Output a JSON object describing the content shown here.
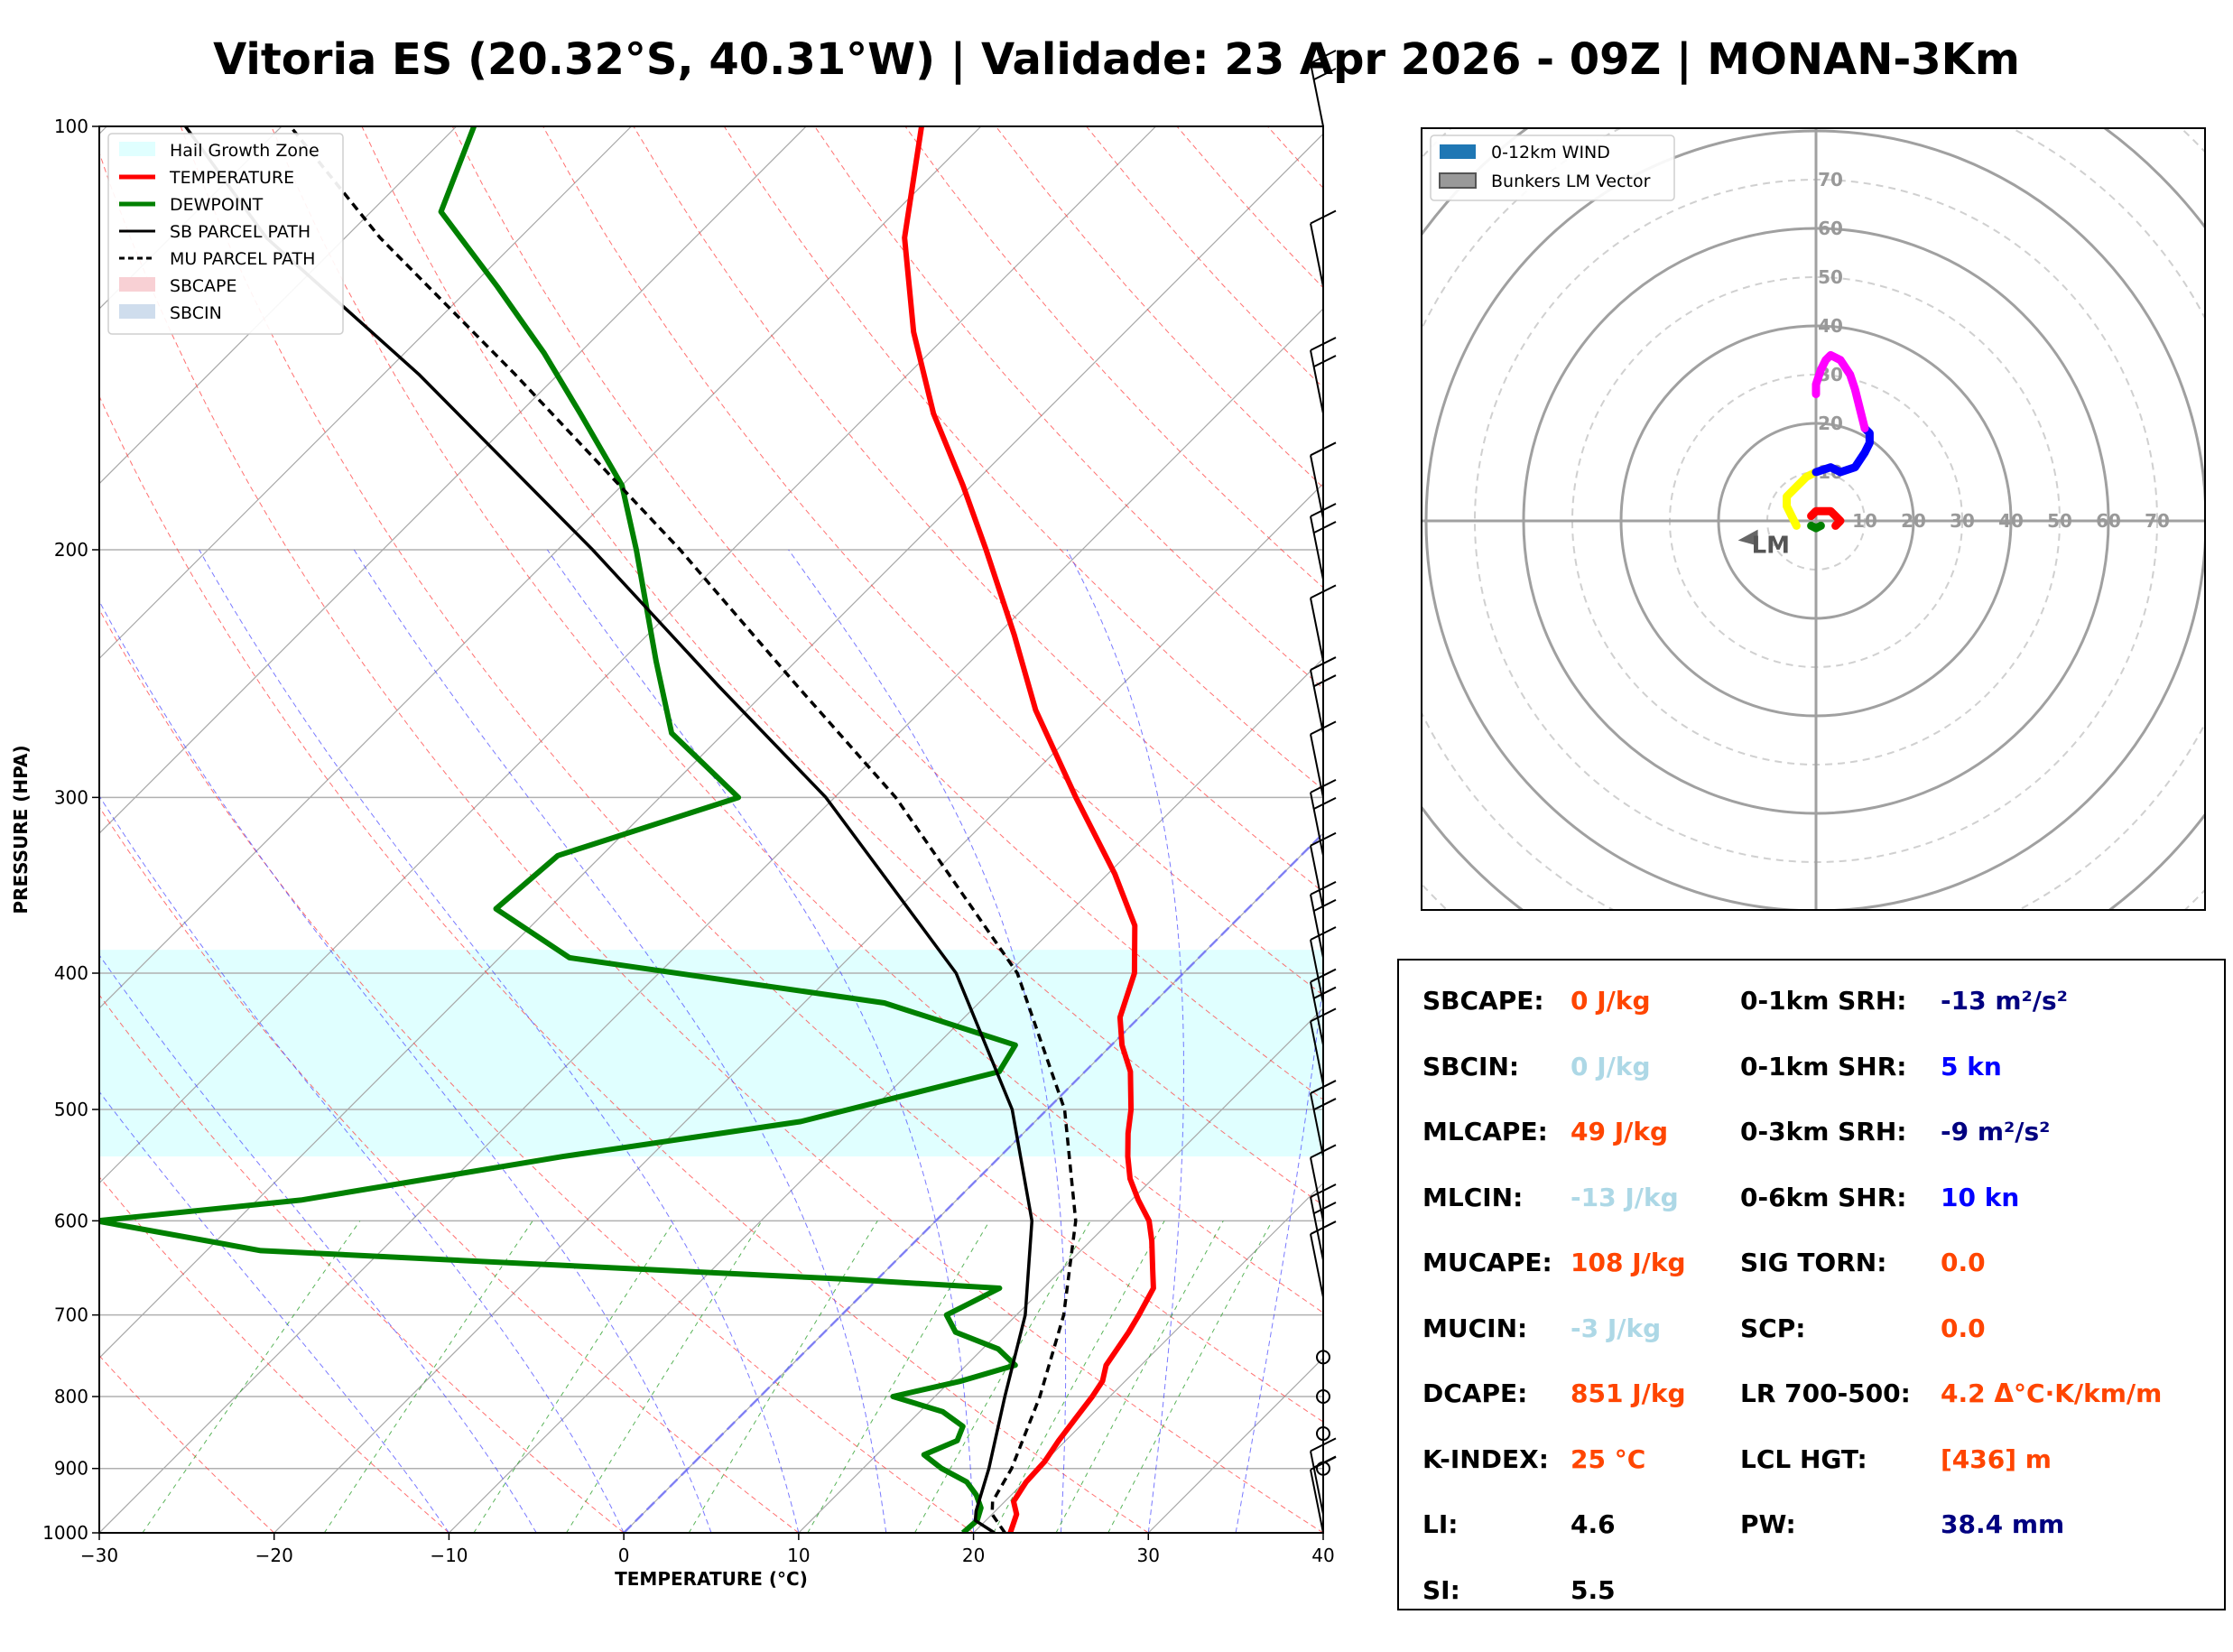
{
  "title": "Vitoria ES (20.32°S, 40.31°W) | Validade: 23 Apr 2026 - 09Z | MONAN-3Km",
  "chart_data": [
    {
      "type": "line",
      "subtype": "skew-T log-p diagram",
      "xlabel": "TEMPERATURE (°C)",
      "ylabel": "PRESSURE (HPA)",
      "xlim": [
        -30,
        40
      ],
      "ylim": [
        1000,
        100
      ],
      "y_scale": "log",
      "grid": true,
      "x_ticks": [
        "−30",
        "−20",
        "−10",
        "0",
        "10",
        "20",
        "30",
        "40"
      ],
      "y_ticks": [
        "100",
        "200",
        "300",
        "400",
        "500",
        "600",
        "700",
        "800",
        "900",
        "1000"
      ],
      "legend_position": "top-left",
      "legend": [
        {
          "label": "Hail Growth Zone",
          "color": "#e0ffff",
          "style": "patch"
        },
        {
          "label": "TEMPERATURE",
          "color": "#ff0000",
          "style": "solid"
        },
        {
          "label": "DEWPOINT",
          "color": "#008000",
          "style": "solid"
        },
        {
          "label": "SB PARCEL PATH",
          "color": "#000000",
          "style": "solid"
        },
        {
          "label": "MU PARCEL PATH",
          "color": "#000000",
          "style": "dashed"
        },
        {
          "label": "SBCAPE",
          "color": "#f8d0d4",
          "style": "patch"
        },
        {
          "label": "SBCIN",
          "color": "#cfdded",
          "style": "patch"
        }
      ],
      "hail_growth_zone_hpa": [
        540,
        385
      ],
      "series": [
        {
          "name": "TEMPERATURE",
          "color": "#ff0000",
          "points": [
            [
              1000,
              22.1
            ],
            [
              970,
              21.4
            ],
            [
              950,
              20.5
            ],
            [
              920,
              20.1
            ],
            [
              890,
              20.0
            ],
            [
              860,
              19.6
            ],
            [
              830,
              19.3
            ],
            [
              800,
              19.0
            ],
            [
              780,
              18.7
            ],
            [
              760,
              18.0
            ],
            [
              720,
              17.4
            ],
            [
              700,
              17.0
            ],
            [
              670,
              16.3
            ],
            [
              650,
              15.2
            ],
            [
              620,
              13.5
            ],
            [
              600,
              12.2
            ],
            [
              580,
              10.4
            ],
            [
              560,
              8.7
            ],
            [
              540,
              7.3
            ],
            [
              520,
              6.0
            ],
            [
              500,
              4.8
            ],
            [
              470,
              2.6
            ],
            [
              450,
              0.6
            ],
            [
              430,
              -1.1
            ],
            [
              400,
              -2.8
            ],
            [
              370,
              -5.5
            ],
            [
              340,
              -9.6
            ],
            [
              300,
              -16.2
            ],
            [
              260,
              -23.5
            ],
            [
              230,
              -29.0
            ],
            [
              200,
              -35.5
            ],
            [
              180,
              -40.5
            ],
            [
              160,
              -46.3
            ],
            [
              140,
              -52.1
            ],
            [
              120,
              -58.0
            ],
            [
              100,
              -63.4
            ]
          ]
        },
        {
          "name": "DEWPOINT",
          "color": "#008000",
          "points": [
            [
              1000,
              19.4
            ],
            [
              980,
              19.5
            ],
            [
              960,
              19.0
            ],
            [
              940,
              18.0
            ],
            [
              920,
              16.7
            ],
            [
              900,
              14.5
            ],
            [
              880,
              12.7
            ],
            [
              860,
              13.8
            ],
            [
              840,
              13.3
            ],
            [
              820,
              11.3
            ],
            [
              800,
              7.6
            ],
            [
              780,
              10.6
            ],
            [
              760,
              12.8
            ],
            [
              740,
              10.9
            ],
            [
              720,
              7.5
            ],
            [
              700,
              6.0
            ],
            [
              670,
              7.5
            ],
            [
              660,
              -2.0
            ],
            [
              630,
              -36.9
            ],
            [
              600,
              -48.0
            ],
            [
              580,
              -37.5
            ],
            [
              540,
              -25.0
            ],
            [
              510,
              -13.4
            ],
            [
              470,
              -4.9
            ],
            [
              450,
              -5.5
            ],
            [
              420,
              -15.4
            ],
            [
              390,
              -36.0
            ],
            [
              360,
              -43.0
            ],
            [
              330,
              -42.5
            ],
            [
              300,
              -35.5
            ],
            [
              270,
              -43.0
            ],
            [
              240,
              -48.0
            ],
            [
              200,
              -55.5
            ],
            [
              180,
              -60.0
            ],
            [
              160,
              -66.5
            ],
            [
              145,
              -72.0
            ],
            [
              130,
              -78.5
            ],
            [
              115,
              -86.0
            ],
            [
              100,
              -89.0
            ]
          ]
        },
        {
          "name": "SB PARCEL PATH",
          "color": "#000000",
          "style": "solid",
          "points": [
            [
              1000,
              21.2
            ],
            [
              980,
              19.4
            ],
            [
              965,
              18.9
            ],
            [
              900,
              17.2
            ],
            [
              800,
              14.0
            ],
            [
              700,
              10.5
            ],
            [
              600,
              5.5
            ],
            [
              500,
              -2.0
            ],
            [
              400,
              -13.0
            ],
            [
              300,
              -30.5
            ],
            [
              250,
              -43.0
            ],
            [
              200,
              -58.0
            ],
            [
              150,
              -78.0
            ],
            [
              120,
              -94.5
            ],
            [
              100,
              -105.5
            ]
          ]
        },
        {
          "name": "MU PARCEL PATH",
          "color": "#000000",
          "style": "dashed",
          "points": [
            [
              1000,
              21.8
            ],
            [
              970,
              20.0
            ],
            [
              950,
              19.3
            ],
            [
              900,
              18.5
            ],
            [
              800,
              16.0
            ],
            [
              700,
              12.7
            ],
            [
              600,
              8.0
            ],
            [
              500,
              1.0
            ],
            [
              400,
              -9.5
            ],
            [
              300,
              -26.5
            ],
            [
              250,
              -38.5
            ],
            [
              200,
              -53.0
            ],
            [
              150,
              -72.5
            ],
            [
              120,
              -88.0
            ],
            [
              100,
              -99.5
            ]
          ]
        }
      ],
      "wind_barbs_right_axis": true
    },
    {
      "type": "scatter",
      "subtype": "hodograph",
      "axis_range": [
        -80,
        80
      ],
      "ring_labels": [
        "10",
        "20",
        "30",
        "40",
        "50",
        "60",
        "70"
      ],
      "legend_position": "top-left",
      "legend": [
        {
          "label": "0-12km WIND",
          "color": "#1f77b4",
          "style": "patch"
        },
        {
          "label": "Bunkers LM Vector",
          "color": "#999999",
          "style": "patch"
        }
      ],
      "storm_vector_label": "LM",
      "storm_vector_uv": [
        -16,
        -4
      ],
      "series": [
        {
          "color": "#008000",
          "points": [
            [
              -1,
              -1
            ],
            [
              0,
              -1.5
            ],
            [
              1,
              -1
            ]
          ]
        },
        {
          "color": "#ff0000",
          "points": [
            [
              -1,
              1
            ],
            [
              0,
              2
            ],
            [
              2,
              2
            ],
            [
              3,
              2
            ],
            [
              4,
              1
            ],
            [
              5,
              0
            ],
            [
              4,
              -1
            ]
          ]
        },
        {
          "color": "#ffff00",
          "points": [
            [
              -4,
              -1
            ],
            [
              -5,
              1
            ],
            [
              -6,
              3
            ],
            [
              -6,
              5
            ],
            [
              -4,
              7
            ],
            [
              -2,
              9
            ],
            [
              0,
              10
            ]
          ]
        },
        {
          "color": "#0000ff",
          "points": [
            [
              0,
              10
            ],
            [
              3,
              11
            ],
            [
              5,
              10
            ],
            [
              8,
              11
            ],
            [
              10,
              14
            ],
            [
              11,
              16
            ],
            [
              11,
              18
            ],
            [
              10,
              19
            ]
          ]
        },
        {
          "color": "#ff00ff",
          "points": [
            [
              10,
              19
            ],
            [
              9,
              23
            ],
            [
              8,
              27
            ],
            [
              7,
              30
            ],
            [
              5,
              33
            ],
            [
              3,
              34
            ],
            [
              2,
              33
            ],
            [
              1,
              31
            ],
            [
              0,
              28
            ],
            [
              0,
              26
            ]
          ]
        }
      ]
    }
  ],
  "params": [
    {
      "label": "SBCAPE:",
      "value": "0 J/kg",
      "color": "#ff4500"
    },
    {
      "label": "SBCIN:",
      "value": "0 J/kg",
      "color": "#add8e6"
    },
    {
      "label": "MLCAPE:",
      "value": "49 J/kg",
      "color": "#ff4500"
    },
    {
      "label": "MLCIN:",
      "value": "-13 J/kg",
      "color": "#add8e6"
    },
    {
      "label": "MUCAPE:",
      "value": "108 J/kg",
      "color": "#ff4500"
    },
    {
      "label": "MUCIN:",
      "value": "-3 J/kg",
      "color": "#add8e6"
    },
    {
      "label": "DCAPE:",
      "value": "851 J/kg",
      "color": "#ff4500"
    },
    {
      "label": "K-INDEX:",
      "value": "25 °C",
      "color": "#ff4500"
    },
    {
      "label": "LI:",
      "value": "4.6",
      "color": "#000000"
    },
    {
      "label": "SI:",
      "value": "5.5",
      "color": "#000000"
    },
    {
      "label": "0-1km SRH:",
      "value": "-13 m²/s²",
      "color": "#000080"
    },
    {
      "label": "0-1km SHR:",
      "value": "5 kn",
      "color": "#0000ff"
    },
    {
      "label": "0-3km SRH:",
      "value": "-9 m²/s²",
      "color": "#000080"
    },
    {
      "label": "0-6km SHR:",
      "value": "10 kn",
      "color": "#0000ff"
    },
    {
      "label": "SIG TORN:",
      "value": "0.0",
      "color": "#ff4500"
    },
    {
      "label": "SCP:",
      "value": "0.0",
      "color": "#ff4500"
    },
    {
      "label": "LR 700-500:",
      "value": "4.2 Δ°C·K/km/m",
      "color": "#ff4500"
    },
    {
      "label": "LCL HGT:",
      "value": "[436] m",
      "color": "#ff4500"
    },
    {
      "label": "PW:",
      "value": "38.4 mm",
      "color": "#000080"
    }
  ]
}
